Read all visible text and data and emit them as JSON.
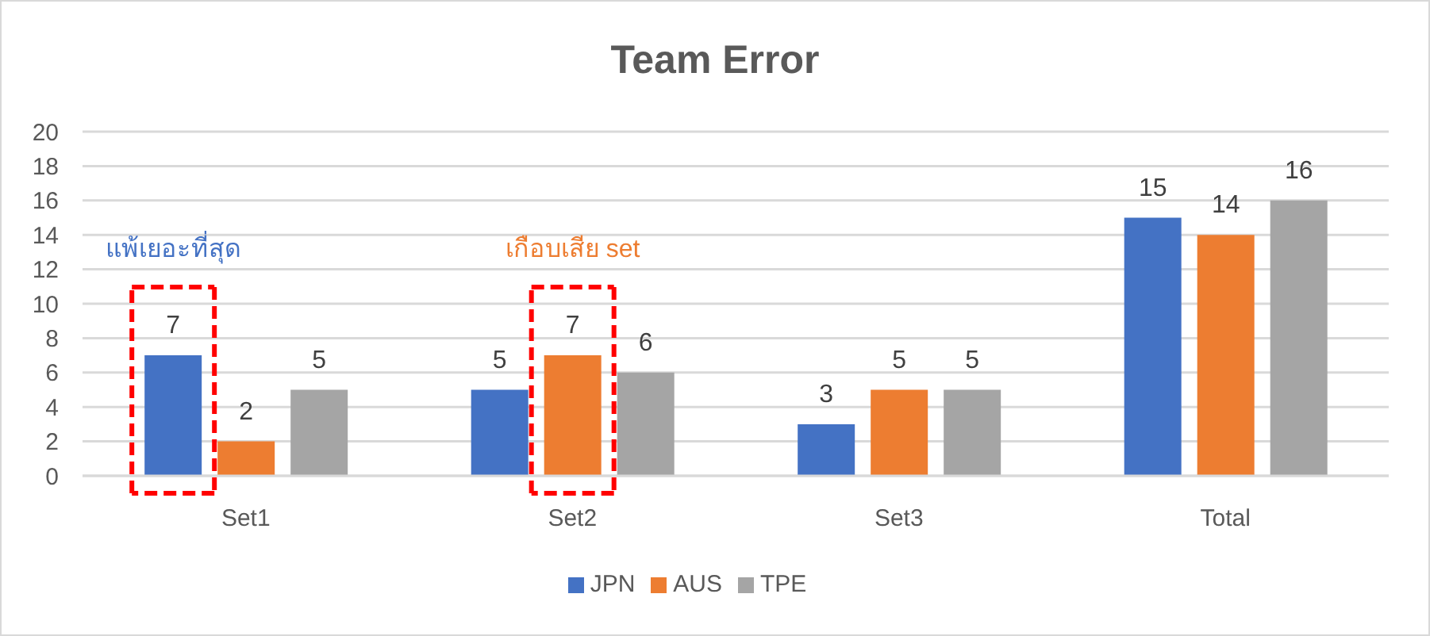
{
  "chart_data": {
    "type": "bar",
    "title": "Team Error",
    "categories": [
      "Set1",
      "Set2",
      "Set3",
      "Total"
    ],
    "series": [
      {
        "name": "JPN",
        "color": "#4472c4",
        "values": [
          7,
          5,
          3,
          15
        ]
      },
      {
        "name": "AUS",
        "color": "#ed7d31",
        "values": [
          2,
          7,
          5,
          14
        ]
      },
      {
        "name": "TPE",
        "color": "#a5a5a5",
        "values": [
          5,
          6,
          5,
          16
        ]
      }
    ],
    "ylim": [
      0,
      20
    ],
    "yticks": [
      0,
      2,
      4,
      6,
      8,
      10,
      12,
      14,
      16,
      18,
      20
    ],
    "grid": "y",
    "legend": "bottom",
    "data_labels": true,
    "annotations": [
      "แพ้เยอะที่สุด",
      "เกือบเสีย set"
    ]
  }
}
